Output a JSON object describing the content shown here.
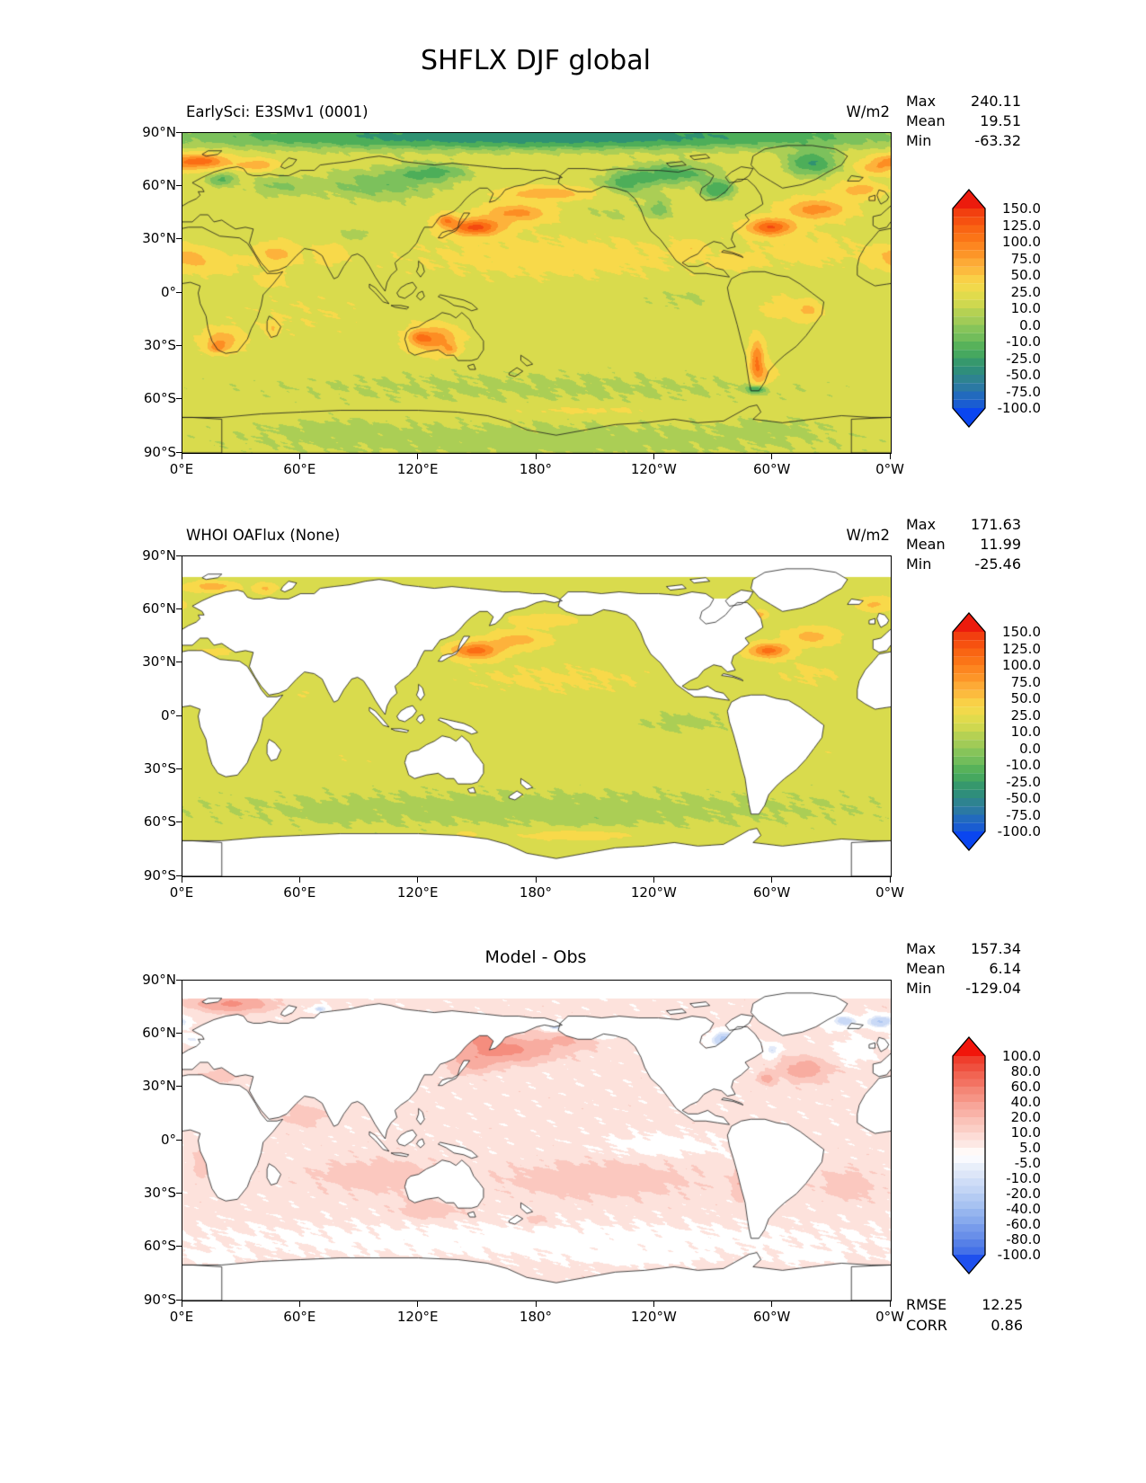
{
  "title": "SHFLX DJF global",
  "axes": {
    "lat_ticks": [
      "90°N",
      "60°N",
      "30°N",
      "0°",
      "30°S",
      "60°S",
      "90°S"
    ],
    "lon_ticks": [
      "0°E",
      "60°E",
      "120°E",
      "180°",
      "120°W",
      "60°W",
      "0°W"
    ]
  },
  "panels": [
    {
      "subtitle": "EarlySci: E3SMv1 (0001)",
      "units": "W/m2",
      "stats": [
        {
          "label": "Max",
          "value": "240.11"
        },
        {
          "label": "Mean",
          "value": "19.51"
        },
        {
          "label": "Min",
          "value": "-63.32"
        }
      ]
    },
    {
      "subtitle": "WHOI OAFlux (None)",
      "units": "W/m2",
      "stats": [
        {
          "label": "Max",
          "value": "171.63"
        },
        {
          "label": "Mean",
          "value": "11.99"
        },
        {
          "label": "Min",
          "value": "-25.46"
        }
      ]
    },
    {
      "subtitle": "Model - Obs",
      "units": "",
      "stats": [
        {
          "label": "Max",
          "value": "157.34"
        },
        {
          "label": "Mean",
          "value": "6.14"
        },
        {
          "label": "Min",
          "value": "-129.04"
        }
      ],
      "extra_stats": [
        {
          "label": "RMSE",
          "value": "12.25"
        },
        {
          "label": "CORR",
          "value": "0.86"
        }
      ]
    }
  ],
  "chart_data": [
    {
      "type": "heatmap",
      "name": "EarlySci: E3SMv1 (0001)",
      "variable": "SHFLX",
      "season": "DJF",
      "region": "global",
      "units": "W/m2",
      "stats": {
        "max": 240.11,
        "mean": 19.51,
        "min": -63.32
      },
      "levels": [
        150,
        125,
        100,
        75,
        50,
        25,
        10,
        0,
        -10,
        -25,
        -50,
        -75,
        -100
      ],
      "colors": [
        "#ec1b0d",
        "#f4490f",
        "#fb6d14",
        "#fd8d23",
        "#fdb23b",
        "#f8d94a",
        "#d9db4d",
        "#abce55",
        "#7cc15c",
        "#4dae59",
        "#2f9272",
        "#2e7f99",
        "#1f64c8",
        "#0a46f0"
      ],
      "land": "data",
      "base": 18,
      "noise": 3,
      "blobs": [
        [
          190,
          20,
          80,
          13,
          13
        ],
        [
          320,
          24,
          26,
          10,
          12
        ],
        [
          60,
          -12,
          45,
          14,
          6
        ],
        [
          180,
          -53,
          180,
          11,
          -10
        ],
        [
          180,
          88,
          180,
          7,
          -55
        ],
        [
          255,
          -3,
          27,
          7,
          -9
        ],
        [
          180,
          -83,
          180,
          12,
          -13
        ],
        [
          300,
          -75,
          25,
          6,
          -6
        ],
        [
          75,
          -76,
          30,
          6,
          -6
        ],
        [
          215,
          44,
          18,
          7,
          -9
        ],
        [
          235,
          55,
          15,
          5,
          -6
        ],
        [
          149,
          37,
          13,
          4.5,
          115
        ],
        [
          170,
          45,
          16,
          5,
          65
        ],
        [
          185,
          56,
          20,
          3.5,
          55
        ],
        [
          134,
          41,
          5,
          3.5,
          70
        ],
        [
          299,
          37,
          11,
          4.5,
          110
        ],
        [
          322,
          47,
          15,
          5.5,
          70
        ],
        [
          344,
          58,
          11,
          4.5,
          45
        ],
        [
          8,
          74,
          15,
          4,
          100
        ],
        [
          38,
          72,
          9,
          3,
          55
        ],
        [
          352,
          70,
          8,
          3.5,
          40
        ],
        [
          272,
          58,
          8,
          5,
          -42
        ],
        [
          249,
          67,
          22,
          6,
          -35
        ],
        [
          225,
          62,
          13,
          6,
          -28
        ],
        [
          242,
          47,
          7,
          6,
          -22
        ],
        [
          320,
          73,
          13,
          7,
          -42
        ],
        [
          20,
          64,
          7,
          4,
          -32
        ],
        [
          48,
          60,
          14,
          6,
          -18
        ],
        [
          100,
          61,
          32,
          9,
          -24
        ],
        [
          128,
          68,
          18,
          5,
          -28
        ],
        [
          88,
          33,
          8,
          4,
          -16
        ],
        [
          2,
          20,
          11,
          6,
          42
        ],
        [
          17,
          16,
          13,
          6,
          20
        ],
        [
          48,
          22,
          10,
          6,
          42
        ],
        [
          75,
          22,
          7,
          5,
          28
        ],
        [
          45,
          8,
          6,
          4,
          26
        ],
        [
          20,
          -27,
          9,
          6,
          55
        ],
        [
          17,
          -31,
          4,
          2.5,
          45
        ],
        [
          46,
          -20,
          3,
          4,
          30
        ],
        [
          128,
          -26,
          11,
          7,
          75
        ],
        [
          120,
          -25,
          5,
          4,
          45
        ],
        [
          136,
          -32,
          4,
          3,
          40
        ],
        [
          305,
          -8,
          12,
          8,
          14
        ],
        [
          318,
          -10,
          6,
          5,
          38
        ],
        [
          292,
          -38,
          3.5,
          11,
          85
        ],
        [
          296,
          -46,
          6,
          6,
          35
        ],
        [
          292,
          -54,
          5,
          2.5,
          -45
        ],
        [
          258,
          25,
          6,
          4,
          28
        ],
        [
          282,
          18,
          10,
          4,
          18
        ],
        [
          205,
          -66,
          45,
          3,
          14
        ]
      ]
    },
    {
      "type": "heatmap",
      "name": "WHOI OAFlux (None)",
      "variable": "SHFLX",
      "season": "DJF",
      "region": "global",
      "units": "W/m2",
      "stats": {
        "max": 171.63,
        "mean": 11.99,
        "min": -25.46
      },
      "levels": [
        150,
        125,
        100,
        75,
        50,
        25,
        10,
        0,
        -10,
        -25,
        -50,
        -75,
        -100
      ],
      "colors": [
        "#ec1b0d",
        "#f4490f",
        "#fb6d14",
        "#fd8d23",
        "#fdb23b",
        "#f8d94a",
        "#d9db4d",
        "#abce55",
        "#7cc15c",
        "#4dae59",
        "#2f9272",
        "#2e7f99",
        "#1f64c8",
        "#0a46f0"
      ],
      "land": "white",
      "white_above_lat": 78.5,
      "white_regions": [
        [
          263,
          285,
          50,
          66
        ]
      ],
      "base": 15,
      "noise": 2.5,
      "blobs": [
        [
          190,
          21,
          75,
          12,
          12
        ],
        [
          320,
          24,
          24,
          10,
          11
        ],
        [
          180,
          -52,
          180,
          11,
          -9
        ],
        [
          255,
          -3,
          25,
          6,
          -8
        ],
        [
          149,
          37,
          12,
          4.5,
          95
        ],
        [
          170,
          43,
          15,
          5,
          45
        ],
        [
          183,
          54,
          17,
          3.5,
          30
        ],
        [
          298,
          37,
          10,
          4,
          95
        ],
        [
          320,
          45,
          13,
          5,
          45
        ],
        [
          352,
          63,
          9,
          4,
          40
        ],
        [
          15,
          73,
          12,
          3,
          50
        ],
        [
          42,
          72,
          6,
          3,
          38
        ],
        [
          293,
          57,
          4,
          2.5,
          50
        ],
        [
          85,
          -25,
          28,
          8,
          8
        ],
        [
          205,
          -25,
          40,
          8,
          6
        ],
        [
          330,
          -22,
          14,
          7,
          8
        ],
        [
          15,
          36,
          12,
          3,
          18
        ],
        [
          62,
          13,
          8,
          5,
          10
        ],
        [
          200,
          -67,
          28,
          3,
          26
        ],
        [
          145,
          -66,
          9,
          2.5,
          16
        ],
        [
          80,
          -55,
          15,
          4,
          -6
        ],
        [
          210,
          -57,
          20,
          4,
          -5
        ]
      ]
    },
    {
      "type": "heatmap",
      "name": "Model - Obs",
      "variable": "SHFLX bias",
      "season": "DJF",
      "region": "global",
      "units": "W/m2",
      "stats": {
        "max": 157.34,
        "mean": 6.14,
        "min": -129.04,
        "rmse": 12.25,
        "corr": 0.86
      },
      "levels": [
        100,
        80,
        60,
        40,
        20,
        10,
        5,
        -5,
        -10,
        -20,
        -40,
        -60,
        -80,
        -100
      ],
      "colors": [
        "#f1150b",
        "#ee4937",
        "#f26b5a",
        "#f58d7e",
        "#f8aca0",
        "#fbc8bf",
        "#fde2dc",
        "#ffffff",
        "#e2eaf9",
        "#c9d9f6",
        "#aec7f2",
        "#8fb0ee",
        "#7095ea",
        "#4f7ae6",
        "#1e50ee"
      ],
      "land": "white",
      "white_above_lat": 80,
      "white_regions": [],
      "base": 7,
      "noise": 2,
      "blobs": [
        [
          163,
          51,
          21,
          6,
          42
        ],
        [
          152,
          57,
          10,
          3.5,
          30
        ],
        [
          148,
          44,
          9,
          5,
          22
        ],
        [
          196,
          57,
          14,
          5,
          14
        ],
        [
          25,
          77,
          16,
          4,
          38
        ],
        [
          355,
          67,
          7,
          3.5,
          -28
        ],
        [
          336,
          67,
          7,
          3.5,
          -22
        ],
        [
          190,
          64,
          5,
          2.5,
          -22
        ],
        [
          213,
          59,
          8,
          2,
          -15
        ],
        [
          275,
          57,
          6,
          4,
          -32
        ],
        [
          300,
          51,
          3.5,
          3.5,
          -18
        ],
        [
          316,
          40,
          11,
          6,
          22
        ],
        [
          297,
          35,
          4,
          3,
          20
        ],
        [
          342,
          51,
          9,
          6,
          -9
        ],
        [
          5,
          57,
          5,
          3,
          -12
        ],
        [
          70,
          74,
          4,
          2,
          -20
        ],
        [
          18,
          36,
          9,
          3,
          10
        ],
        [
          62,
          14,
          8,
          5,
          12
        ],
        [
          100,
          -20,
          28,
          8,
          10
        ],
        [
          212,
          -22,
          42,
          9,
          10
        ],
        [
          338,
          -25,
          13,
          8,
          8
        ],
        [
          125,
          -39,
          14,
          5,
          9
        ],
        [
          283,
          -24,
          3,
          9,
          13
        ],
        [
          9,
          -14,
          3,
          8,
          10
        ],
        [
          245,
          -3,
          28,
          6,
          -6
        ],
        [
          180,
          -56,
          180,
          9,
          -5
        ],
        [
          230,
          -66,
          28,
          3,
          -9
        ],
        [
          320,
          -65,
          14,
          3,
          -7
        ],
        [
          15,
          -66,
          14,
          3,
          -7
        ],
        [
          179,
          -45,
          5,
          3,
          8
        ]
      ]
    }
  ]
}
